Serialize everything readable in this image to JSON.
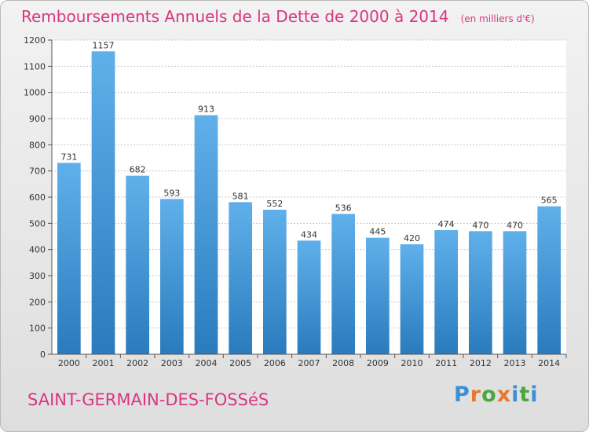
{
  "title": "Remboursements Annuels de la Dette de 2000 à 2014",
  "unit_note": "(en milliers d'€)",
  "commune": "SAINT-GERMAIN-DES-FOSSéS",
  "logo_text": "Proxiti",
  "colors": {
    "title": "#d9367f",
    "bar_top": "#5fb0ea",
    "bar_bottom": "#2a7bbd",
    "logo_letters": [
      "#3a8fd8",
      "#e8772a",
      "#4aa83a",
      "#e8772a",
      "#3a8fd8",
      "#4aa83a",
      "#3a8fd8"
    ]
  },
  "chart_data": {
    "type": "bar",
    "title": "Remboursements Annuels de la Dette de 2000 à 2014",
    "categories": [
      "2000",
      "2001",
      "2002",
      "2003",
      "2004",
      "2005",
      "2006",
      "2007",
      "2008",
      "2009",
      "2010",
      "2011",
      "2012",
      "2013",
      "2014"
    ],
    "values": [
      731,
      1157,
      682,
      593,
      913,
      581,
      552,
      434,
      536,
      445,
      420,
      474,
      470,
      470,
      565
    ],
    "ylim": [
      0,
      1200
    ],
    "yticks": [
      0,
      100,
      200,
      300,
      400,
      500,
      600,
      700,
      800,
      900,
      1000,
      1100,
      1200
    ],
    "grid": true,
    "xlabel": "",
    "ylabel": ""
  }
}
